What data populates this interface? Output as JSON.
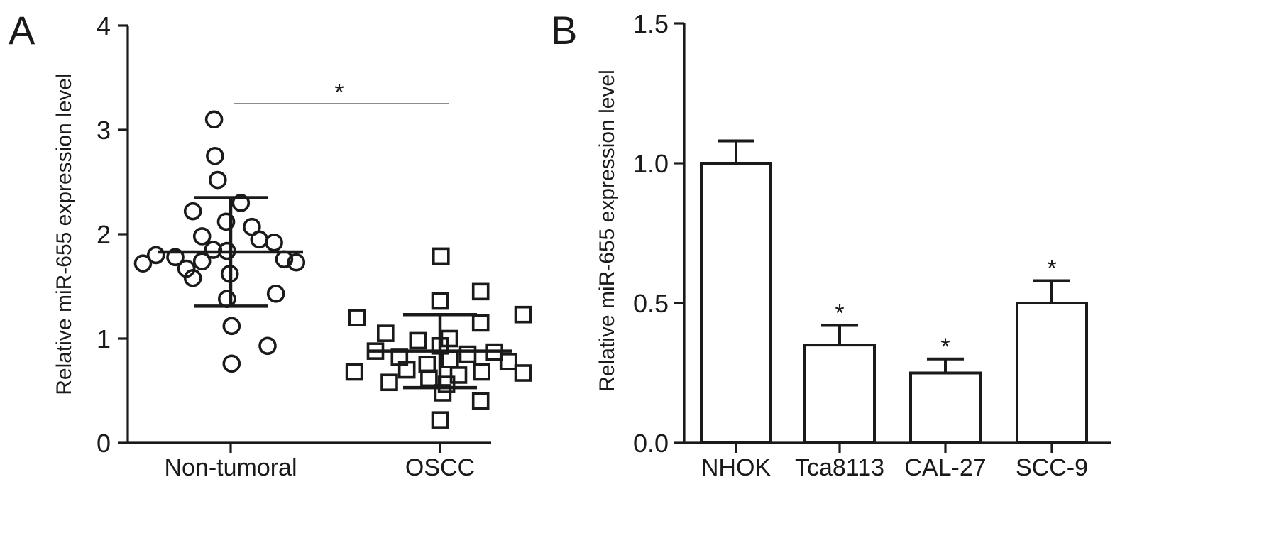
{
  "chart_data": [
    {
      "type": "scatter",
      "panel_label": "A",
      "ylabel": "Relative miR-655 expression level",
      "ylim": [
        0,
        4
      ],
      "yticks": [
        "0",
        "1",
        "2",
        "3",
        "4"
      ],
      "categories": [
        "Non-tumoral",
        "OSCC"
      ],
      "groups": [
        {
          "name": "Non-tumoral",
          "marker": "circle",
          "mean": 1.83,
          "sd": 0.52,
          "points": [
            {
              "v": 3.1,
              "o": -0.18
            },
            {
              "v": 2.75,
              "o": -0.17
            },
            {
              "v": 2.52,
              "o": -0.14
            },
            {
              "v": 2.3,
              "o": 0.11
            },
            {
              "v": 2.22,
              "o": -0.41
            },
            {
              "v": 2.12,
              "o": -0.05
            },
            {
              "v": 2.07,
              "o": 0.23
            },
            {
              "v": 1.98,
              "o": -0.31
            },
            {
              "v": 1.95,
              "o": 0.31
            },
            {
              "v": 1.92,
              "o": 0.47
            },
            {
              "v": 1.85,
              "o": -0.19
            },
            {
              "v": 1.84,
              "o": -0.04
            },
            {
              "v": 1.8,
              "o": -0.81
            },
            {
              "v": 1.78,
              "o": -0.6
            },
            {
              "v": 1.76,
              "o": 0.58
            },
            {
              "v": 1.74,
              "o": -0.31
            },
            {
              "v": 1.72,
              "o": -0.95
            },
            {
              "v": 1.73,
              "o": 0.71
            },
            {
              "v": 1.67,
              "o": -0.48
            },
            {
              "v": 1.62,
              "o": -0.01
            },
            {
              "v": 1.58,
              "o": -0.41
            },
            {
              "v": 1.43,
              "o": 0.49
            },
            {
              "v": 1.38,
              "o": -0.04
            },
            {
              "v": 1.12,
              "o": 0.01
            },
            {
              "v": 0.93,
              "o": 0.4
            },
            {
              "v": 0.76,
              "o": 0.01
            }
          ]
        },
        {
          "name": "OSCC",
          "marker": "square",
          "mean": 0.88,
          "sd": 0.35,
          "points": [
            {
              "v": 1.79,
              "o": 0.01
            },
            {
              "v": 1.45,
              "o": 0.44
            },
            {
              "v": 1.36,
              "o": 0.0
            },
            {
              "v": 1.23,
              "o": 0.9
            },
            {
              "v": 1.2,
              "o": -0.9
            },
            {
              "v": 1.15,
              "o": 0.44
            },
            {
              "v": 1.05,
              "o": -0.59
            },
            {
              "v": 1.0,
              "o": 0.1
            },
            {
              "v": 0.98,
              "o": -0.24
            },
            {
              "v": 0.93,
              "o": 0.0
            },
            {
              "v": 0.88,
              "o": -0.7
            },
            {
              "v": 0.87,
              "o": 0.59
            },
            {
              "v": 0.85,
              "o": 0.3
            },
            {
              "v": 0.82,
              "o": -0.44
            },
            {
              "v": 0.8,
              "o": 0.11
            },
            {
              "v": 0.78,
              "o": 0.74
            },
            {
              "v": 0.75,
              "o": -0.14
            },
            {
              "v": 0.7,
              "o": -0.36
            },
            {
              "v": 0.68,
              "o": 0.45
            },
            {
              "v": 0.68,
              "o": -0.93
            },
            {
              "v": 0.67,
              "o": 0.9
            },
            {
              "v": 0.65,
              "o": 0.2
            },
            {
              "v": 0.62,
              "o": -0.12
            },
            {
              "v": 0.58,
              "o": -0.55
            },
            {
              "v": 0.56,
              "o": 0.07
            },
            {
              "v": 0.48,
              "o": 0.03
            },
            {
              "v": 0.4,
              "o": 0.44
            },
            {
              "v": 0.22,
              "o": 0.0
            }
          ]
        }
      ],
      "significance": {
        "from": "Non-tumoral",
        "to": "OSCC",
        "y": 3.25,
        "label": "*"
      }
    },
    {
      "type": "bar",
      "panel_label": "B",
      "ylabel": "Relative miR-655 expression level",
      "ylim": [
        0,
        1.5
      ],
      "yticks": [
        "0.0",
        "0.5",
        "1.0",
        "1.5"
      ],
      "categories": [
        "NHOK",
        "Tca8113",
        "CAL-27",
        "SCC-9"
      ],
      "values": [
        1.0,
        0.35,
        0.25,
        0.5
      ],
      "errors": [
        0.08,
        0.07,
        0.05,
        0.08
      ],
      "annotations": [
        "",
        "*",
        "*",
        "*"
      ]
    }
  ]
}
